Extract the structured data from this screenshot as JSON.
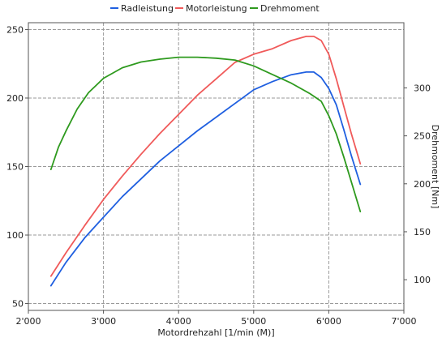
{
  "chart_data": {
    "type": "line",
    "xlabel": "Motordrehzahl [1/min (M)]",
    "ylabel_right": "Drehmoment [Nm]",
    "xlim": [
      2000,
      7000
    ],
    "ylim_left": [
      45,
      255
    ],
    "ylim_right": [
      68,
      368
    ],
    "x_ticks": [
      2000,
      3000,
      4000,
      5000,
      6000,
      7000
    ],
    "x_tick_labels": [
      "2'000",
      "3'000",
      "4'000",
      "5'000",
      "6'000",
      "7'000"
    ],
    "y_left_ticks": [
      50,
      100,
      150,
      200,
      250
    ],
    "y_left_tick_labels": [
      "50",
      "100",
      "150",
      "200",
      "250"
    ],
    "y_right_ticks": [
      100,
      150,
      200,
      250,
      300
    ],
    "y_right_tick_labels": [
      "100",
      "150",
      "200",
      "250",
      "300"
    ],
    "grid": true,
    "legend_position": "top",
    "series": [
      {
        "name": "Radleistung",
        "color": "#1f5fe0",
        "axis": "left",
        "x": [
          2300,
          2500,
          2750,
          3000,
          3250,
          3500,
          3750,
          4000,
          4250,
          4500,
          4750,
          5000,
          5250,
          5500,
          5700,
          5800,
          5900,
          6000,
          6100,
          6200,
          6300,
          6420
        ],
        "y": [
          63,
          80,
          98,
          113,
          128,
          141,
          154,
          165,
          176,
          186,
          196,
          206,
          212,
          217,
          219,
          219,
          215,
          207,
          195,
          177,
          158,
          137
        ]
      },
      {
        "name": "Motorleistung",
        "color": "#f05a5a",
        "axis": "left",
        "x": [
          2300,
          2500,
          2750,
          3000,
          3250,
          3500,
          3750,
          4000,
          4250,
          4500,
          4750,
          5000,
          5250,
          5500,
          5700,
          5800,
          5900,
          6000,
          6100,
          6200,
          6300,
          6420
        ],
        "y": [
          70,
          87,
          107,
          126,
          143,
          159,
          174,
          188,
          202,
          214,
          226,
          232,
          236,
          242,
          245,
          245,
          242,
          232,
          214,
          194,
          174,
          152
        ]
      },
      {
        "name": "Drehmoment",
        "color": "#2e9a1e",
        "axis": "right",
        "x": [
          2300,
          2400,
          2500,
          2650,
          2800,
          3000,
          3250,
          3500,
          3750,
          4000,
          4250,
          4500,
          4750,
          5000,
          5250,
          5500,
          5750,
          5900,
          6000,
          6100,
          6200,
          6300,
          6420
        ],
        "y": [
          215,
          238,
          255,
          278,
          295,
          310,
          321,
          327,
          330,
          332,
          332,
          331,
          329,
          323,
          314,
          305,
          294,
          286,
          271,
          252,
          228,
          202,
          171
        ]
      }
    ]
  }
}
